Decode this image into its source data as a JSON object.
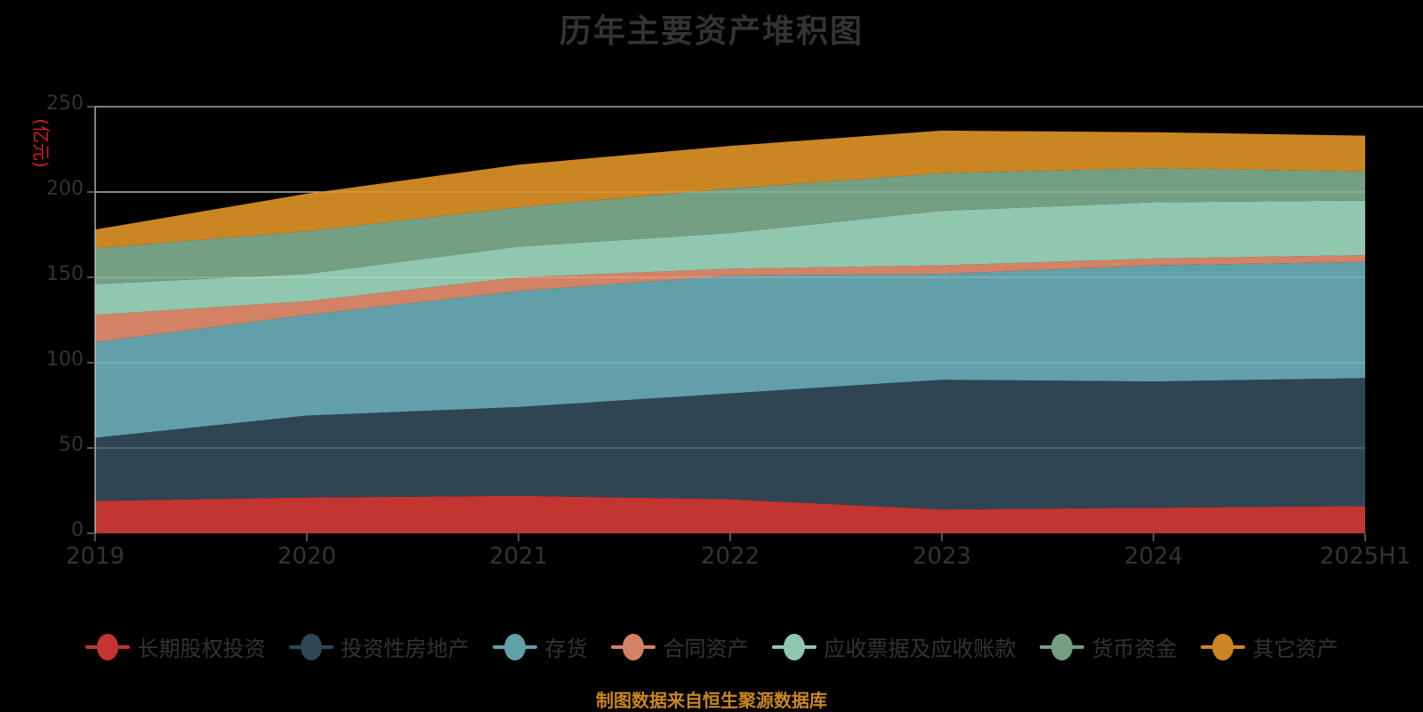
{
  "title": "历年主要资产堆积图",
  "y_axis": {
    "name": "(亿元)",
    "name_color": "#db1c1c",
    "ticks": [
      0,
      50,
      100,
      150,
      200,
      250
    ],
    "label_color": "#333333"
  },
  "x_axis": {
    "label_color": "#333333"
  },
  "footer": {
    "source_note": "制图数据来自恒生聚源数据库",
    "color": "#ca8622"
  },
  "chart_data": {
    "type": "area",
    "stacked": true,
    "title": "历年主要资产堆积图",
    "ylabel": "(亿元)",
    "xlabel": "",
    "ylim": [
      0,
      250
    ],
    "grid": true,
    "legend_position": "bottom",
    "categories": [
      "2019",
      "2020",
      "2021",
      "2022",
      "2023",
      "2024",
      "2025H1"
    ],
    "series": [
      {
        "name": "长期股权投资",
        "color": "#c23531",
        "values": [
          19,
          21,
          22,
          20,
          14,
          15,
          16
        ]
      },
      {
        "name": "投资性房地产",
        "color": "#2f4554",
        "values": [
          37,
          48,
          52,
          62,
          76,
          74,
          75
        ]
      },
      {
        "name": "存货",
        "color": "#61a0a8",
        "values": [
          56,
          59,
          68,
          69,
          62,
          68,
          68
        ]
      },
      {
        "name": "合同资产",
        "color": "#d48265",
        "values": [
          16,
          8,
          8,
          4,
          5,
          4,
          4
        ]
      },
      {
        "name": "应收票据及应收账款",
        "color": "#91c7ae",
        "values": [
          18,
          16,
          18,
          21,
          32,
          33,
          32
        ]
      },
      {
        "name": "货币资金",
        "color": "#749f83",
        "values": [
          21,
          25,
          23,
          26,
          22,
          20,
          17
        ]
      },
      {
        "name": "其它资产",
        "color": "#ca8622",
        "values": [
          11,
          22,
          25,
          25,
          25,
          21,
          21
        ]
      }
    ],
    "totals": [
      178,
      199,
      216,
      227,
      236,
      235,
      233
    ]
  }
}
